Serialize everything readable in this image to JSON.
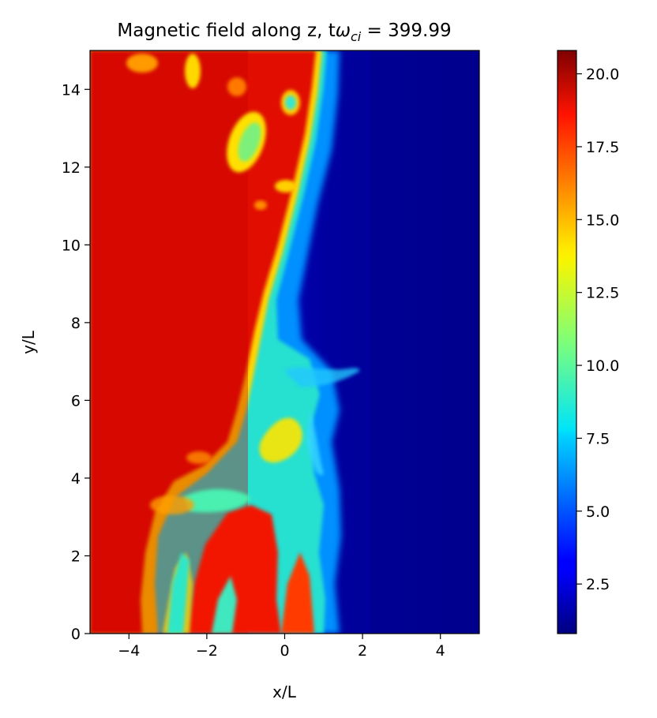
{
  "chart_data": {
    "type": "heatmap",
    "title_main": "Magnetic field along z, t",
    "title_symbol": "ω",
    "title_subscript": "ci",
    "title_value": " = 399.99",
    "xlabel": "x/L",
    "ylabel": "y/L",
    "xlim": [
      -5,
      5
    ],
    "ylim": [
      0,
      15
    ],
    "x_ticks": [
      -4,
      -2,
      0,
      2,
      4
    ],
    "x_tick_labels": [
      "−4",
      "−2",
      "0",
      "2",
      "4"
    ],
    "y_ticks": [
      0,
      2,
      4,
      6,
      8,
      10,
      12,
      14
    ],
    "y_tick_labels": [
      "0",
      "2",
      "4",
      "6",
      "8",
      "10",
      "12",
      "14"
    ],
    "colormap": "jet",
    "colorbar": {
      "min": 0.8,
      "max": 20.8,
      "ticks": [
        2.5,
        5.0,
        7.5,
        10.0,
        12.5,
        15.0,
        17.5,
        20.0
      ],
      "tick_labels": [
        "2.5",
        "5.0",
        "7.5",
        "10.0",
        "12.5",
        "15.0",
        "17.5",
        "20.0"
      ]
    },
    "field_summary": {
      "high_value_region": "left (x < ~0)",
      "high_value": 19.5,
      "low_value_region": "right (x > ~2)",
      "low_value": 1.0,
      "interface_x_at_y": [
        [
          0,
          1.0
        ],
        [
          4,
          0.5
        ],
        [
          6,
          0.4
        ],
        [
          8,
          0.0
        ],
        [
          10,
          0.5
        ],
        [
          12,
          0.9
        ],
        [
          14,
          1.0
        ],
        [
          15,
          1.0
        ]
      ],
      "mixing_zone_y_range": [
        0,
        7
      ]
    }
  }
}
